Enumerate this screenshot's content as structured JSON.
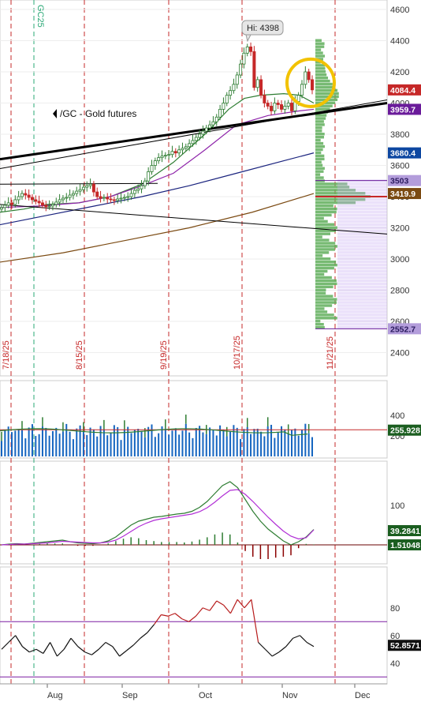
{
  "chart_data": {
    "type": "line",
    "title": "",
    "symbol_label": "/GC - Gold futures",
    "hi_label": "Hi: 4398",
    "date_axis_labels": [
      "Aug",
      "Sep",
      "Oct",
      "Nov",
      "Dec"
    ],
    "event_labels": [
      "7/18/25",
      "8/15/25",
      "9/19/25",
      "10/17/25",
      "11/21/25"
    ],
    "vertical_marker_label": "GC25",
    "price_panel": {
      "ylim": [
        2300,
        4650
      ],
      "ticks": [
        "4600",
        "4400",
        "4200",
        "4000",
        "3800",
        "3600",
        "3400",
        "3200",
        "3000",
        "2800",
        "2600",
        "2400"
      ],
      "price_tags": [
        {
          "text": "4084.4",
          "value": 4084.4,
          "bg": "#c62828",
          "fg": "#ffffff"
        },
        {
          "text": "3959.7",
          "value": 3959.7,
          "bg": "#6a1b9a",
          "fg": "#ffffff"
        },
        {
          "text": "3680.4",
          "value": 3680.4,
          "bg": "#0d47a1",
          "fg": "#ffffff"
        },
        {
          "text": "3503",
          "value": 3503,
          "bg": "#b39ddb",
          "fg": "#2a1a5e"
        },
        {
          "text": "3419.9",
          "value": 3419.9,
          "bg": "#7b4a12",
          "fg": "#ffffff"
        },
        {
          "text": "2552.7",
          "value": 2552.7,
          "bg": "#b39ddb",
          "fg": "#2a1a5e"
        }
      ],
      "close_series": [
        3330,
        3345,
        3360,
        3350,
        3380,
        3400,
        3420,
        3410,
        3395,
        3380,
        3370,
        3360,
        3345,
        3335,
        3340,
        3350,
        3365,
        3380,
        3390,
        3395,
        3410,
        3420,
        3435,
        3445,
        3460,
        3470,
        3480,
        3430,
        3400,
        3390,
        3395,
        3385,
        3380,
        3375,
        3385,
        3390,
        3395,
        3400,
        3420,
        3440,
        3450,
        3470,
        3500,
        3560,
        3600,
        3630,
        3650,
        3660,
        3665,
        3670,
        3690,
        3680,
        3700,
        3710,
        3720,
        3740,
        3760,
        3780,
        3800,
        3820,
        3840,
        3860,
        3880,
        3910,
        3960,
        4000,
        4050,
        4080,
        4120,
        4180,
        4250,
        4320,
        4360,
        4330,
        4100,
        4150,
        4050,
        4000,
        3980,
        3950,
        4000,
        3990,
        3960,
        3980,
        4000,
        3950,
        4010,
        4050,
        4120,
        4200,
        4150,
        4084.4
      ],
      "overlays": [
        {
          "name": "",
          "color": "#2e7d32",
          "points": [
            [
              0,
              3300
            ],
            [
              30,
              3320
            ],
            [
              60,
              3350
            ],
            [
              100,
              3360
            ],
            [
              140,
              3400
            ],
            [
              180,
              3480
            ],
            [
              220,
              3620
            ],
            [
              260,
              3800
            ],
            [
              290,
              3960
            ],
            [
              310,
              4030
            ],
            [
              330,
              4050
            ],
            [
              360,
              4060
            ],
            [
              380,
              4050
            ],
            [
              398,
              4000
            ]
          ]
        },
        {
          "name": "",
          "color": "#8e24aa",
          "points": [
            [
              0,
              3330
            ],
            [
              50,
              3340
            ],
            [
              100,
              3360
            ],
            [
              140,
              3400
            ],
            [
              180,
              3470
            ],
            [
              220,
              3550
            ],
            [
              260,
              3700
            ],
            [
              300,
              3860
            ],
            [
              340,
              3920
            ],
            [
              380,
              3950
            ],
            [
              398,
              3959.7
            ]
          ]
        },
        {
          "name": "",
          "color": "#1a237e",
          "points": [
            [
              0,
              3220
            ],
            [
              60,
              3280
            ],
            [
              120,
              3340
            ],
            [
              180,
              3400
            ],
            [
              240,
              3470
            ],
            [
              300,
              3550
            ],
            [
              360,
              3630
            ],
            [
              398,
              3680.4
            ]
          ]
        },
        {
          "name": "",
          "color": "#7b4a12",
          "points": [
            [
              0,
              2980
            ],
            [
              80,
              3040
            ],
            [
              160,
              3120
            ],
            [
              240,
              3200
            ],
            [
              320,
              3300
            ],
            [
              398,
              3419.9
            ]
          ]
        }
      ]
    },
    "volume_panel": {
      "ticks": [
        "400",
        "200"
      ],
      "value_tag": {
        "text": "255.928",
        "bg": "#1b5e20",
        "fg": "#ffffff"
      }
    },
    "macd_panel": {
      "ticks": [
        "100"
      ],
      "value_tags": [
        {
          "text": "39.2841",
          "bg": "#1b5e20",
          "fg": "#ffffff"
        },
        {
          "text": "1.51048",
          "bg": "#1b5e20",
          "fg": "#ffffff"
        }
      ]
    },
    "rsi_panel": {
      "ticks": [
        "80",
        "60",
        "40"
      ],
      "value_tag": {
        "text": "52.8571",
        "bg": "#111111",
        "fg": "#ffffff"
      }
    },
    "colors": {
      "up": "#2e7d32",
      "down": "#c62828",
      "trendline": "#000000",
      "highlight_circle": "#f2c200",
      "volume_profile": "#5fae5a",
      "value_area": "#c7a8f0"
    }
  }
}
